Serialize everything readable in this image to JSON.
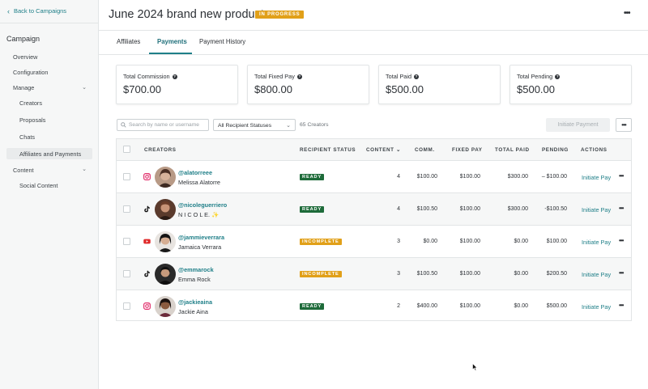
{
  "nav": {
    "back_label": "Back to Campaigns"
  },
  "sidebar": {
    "title": "Campaign",
    "items": [
      "Overview",
      "Configuration",
      "Manage",
      "Creators",
      "Proposals",
      "Chats",
      "Affiliates and Payments",
      "Content",
      "Social Content"
    ]
  },
  "header": {
    "title": "June 2024 brand new product",
    "status": "IN PROGRESS"
  },
  "tabs": [
    "Affiliates",
    "Payments",
    "Payment History"
  ],
  "active_tab": "Payments",
  "cards": [
    {
      "label": "Total Commission",
      "value": "$700.00"
    },
    {
      "label": "Total Fixed Pay",
      "value": "$800.00"
    },
    {
      "label": "Total Paid",
      "value": "$500.00"
    },
    {
      "label": "Total Pending",
      "value": "$500.00"
    }
  ],
  "toolbar": {
    "search_placeholder": "Search by name or username",
    "filter_value": "All Recipient Statuses",
    "count": "65 Creators",
    "initiate_label": "Initiate Payment"
  },
  "table": {
    "headers": [
      "CREATORS",
      "RECIPIENT STATUS",
      "CONTENT",
      "COMM.",
      "FIXED PAY",
      "TOTAL PAID",
      "PENDING",
      "ACTIONS"
    ],
    "rows": [
      {
        "platform": "instagram-icon",
        "handle": "@alatorreee",
        "name": "Melissa Alatorre",
        "status": "READY",
        "content": "4",
        "comm": "$100.00",
        "fixed": "$100.00",
        "paid": "$300.00",
        "pending": "– $100.00",
        "action": "Initiate Pay"
      },
      {
        "platform": "tiktok-icon",
        "handle": "@nicoleguerriero",
        "name": "N I C O L E. ✨",
        "status": "READY",
        "content": "4",
        "comm": "$100.50",
        "fixed": "$100.00",
        "paid": "$300.00",
        "pending": "-$100.50",
        "action": "Initiate Pay"
      },
      {
        "platform": "youtube-icon",
        "handle": "@jammieverrara",
        "name": "Jamaica Verrara",
        "status": "INCOMPLETE",
        "content": "3",
        "comm": "$0.00",
        "fixed": "$100.00",
        "paid": "$0.00",
        "pending": "$100.00",
        "action": "Initiate Pay"
      },
      {
        "platform": "tiktok-icon",
        "handle": "@emmarock",
        "name": "Emma Rock",
        "status": "INCOMPLETE",
        "content": "3",
        "comm": "$100.50",
        "fixed": "$100.00",
        "paid": "$0.00",
        "pending": "$200.50",
        "action": "Initiate Pay"
      },
      {
        "platform": "instagram-icon",
        "handle": "@jackieaina",
        "name": "Jackie Aina",
        "status": "READY",
        "content": "2",
        "comm": "$400.00",
        "fixed": "$100.00",
        "paid": "$0.00",
        "pending": "$500.00",
        "action": "Initiate Pay"
      }
    ]
  },
  "colors": {
    "accent": "#1f7f88",
    "ready": "#1e6b3a",
    "warning": "#e1a019"
  }
}
